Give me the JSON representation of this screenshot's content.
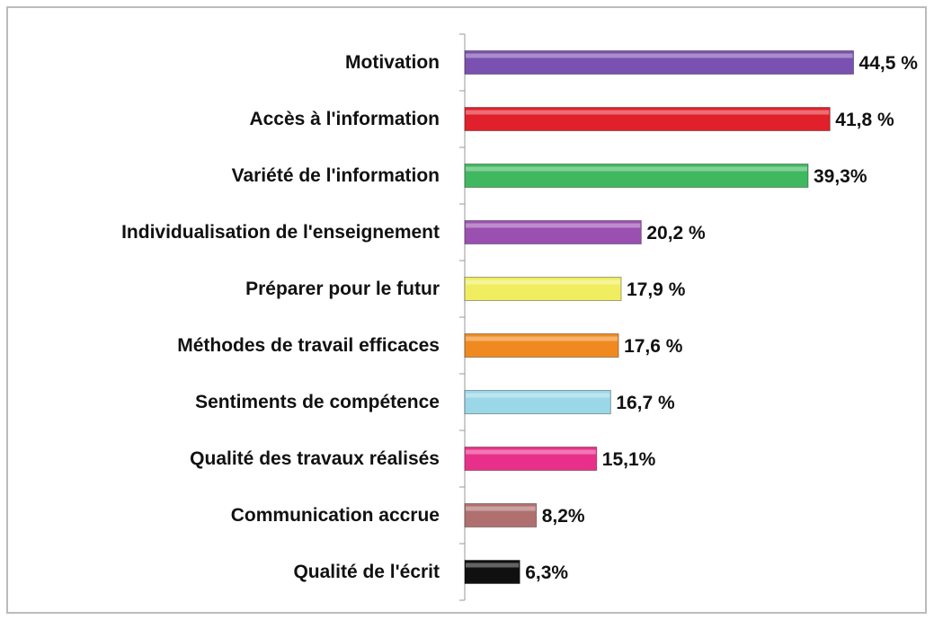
{
  "chart_data": {
    "type": "bar",
    "orientation": "horizontal",
    "categories": [
      "Motivation",
      "Accès à l'information",
      "Variété de l'information",
      "Individualisation de l'enseignement",
      "Préparer pour le futur",
      "Méthodes de travail efficaces",
      "Sentiments de compétence",
      "Qualité des travaux réalisés",
      "Communication accrue",
      "Qualité de l'écrit"
    ],
    "values": [
      44.5,
      41.8,
      39.3,
      20.2,
      17.9,
      17.6,
      16.7,
      15.1,
      8.2,
      6.3
    ],
    "value_labels": [
      "44,5 %",
      "41,8 %",
      "39,3%",
      "20,2 %",
      "17,9 %",
      "17,6 %",
      "16,7 %",
      "15,1%",
      "8,2%",
      "6,3%"
    ],
    "colors": [
      "#7a50b0",
      "#e0202a",
      "#40b860",
      "#9a50b0",
      "#f0ee60",
      "#f08a20",
      "#9ad8e8",
      "#e8308a",
      "#b07070",
      "#101010"
    ],
    "xlim": [
      0,
      50
    ],
    "grid": false
  }
}
